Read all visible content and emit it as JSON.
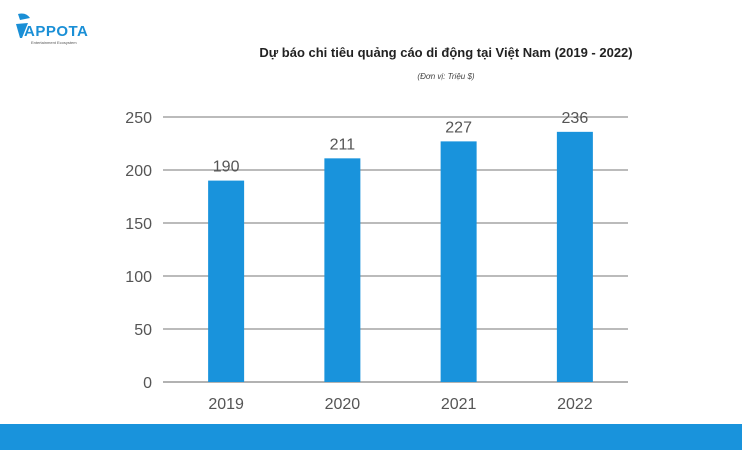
{
  "logo": {
    "text": "APPOTA",
    "tagline": "Entertainment Ecosystem"
  },
  "chart_data": {
    "type": "bar",
    "title": "Dự báo chi tiêu quảng cáo di động tại Việt Nam (2019 - 2022)",
    "subtitle": "(Đơn vị: Triệu $)",
    "categories": [
      "2019",
      "2020",
      "2021",
      "2022"
    ],
    "values": [
      190,
      211,
      227,
      236
    ],
    "ylim": [
      0,
      250
    ],
    "yticks": [
      0,
      50,
      100,
      150,
      200,
      250
    ],
    "grid": true,
    "bar_color": "#1993dc"
  },
  "footer_color": "#1993dc"
}
